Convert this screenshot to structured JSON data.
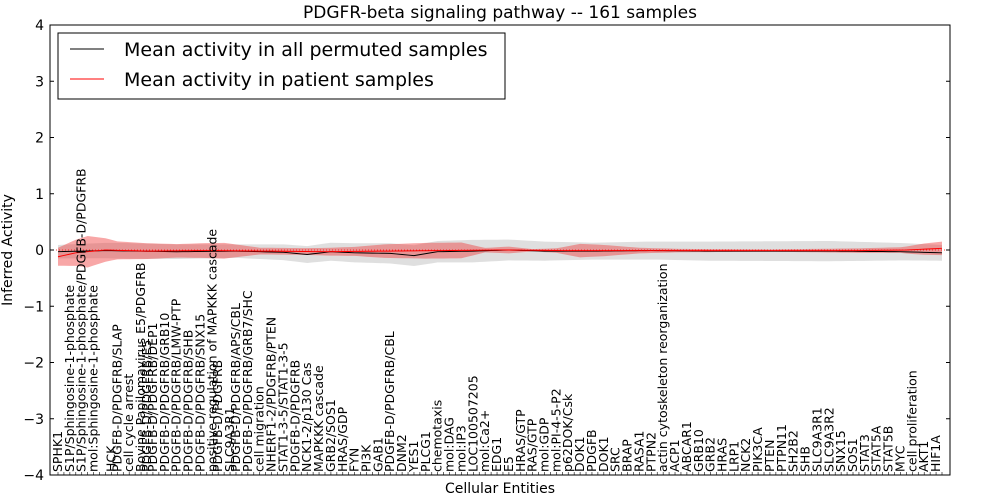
{
  "chart_data": {
    "type": "line",
    "title": "PDGFR-beta signaling pathway -- 161 samples",
    "xlabel": "Cellular Entities",
    "ylabel": "Inferred Activity",
    "ylim": [
      -4,
      4
    ],
    "yticks": [
      -4,
      -3,
      -2,
      -1,
      0,
      1,
      2,
      3,
      4
    ],
    "legend": {
      "placement": "top-left",
      "entries": [
        {
          "label": "Mean activity in all permuted samples",
          "color": "#000000"
        },
        {
          "label": "Mean activity in patient samples",
          "color": "#ff0000"
        }
      ]
    },
    "x_count": 150,
    "x_tick_labels": [
      {
        "i": 0,
        "label": "SPHK1"
      },
      {
        "i": 2,
        "label": "S1P/Sphingosine-1-phosphate"
      },
      {
        "i": 4,
        "label": "S1P/Sphingosine-1-phosphate/PDGFB-D/PDGFRB"
      },
      {
        "i": 6,
        "label": "mol:Sphingosine-1-phosphate"
      },
      {
        "i": 9,
        "label": "HCK"
      },
      {
        "i": 10,
        "label": "PDGFB-D/PDGFRB/SLAP"
      },
      {
        "i": 12,
        "label": "cell cycle arrest"
      },
      {
        "i": 14,
        "label": "Bovine Papilomavirus E5/PDGFRB"
      },
      {
        "i": 15,
        "label": "PDGFB-D/PDGFRB/E5"
      },
      {
        "i": 16,
        "label": "PDGFB-D/PDGFRB/DEP1"
      },
      {
        "i": 18,
        "label": "PDGFB-D/PDGFRB/GRB10"
      },
      {
        "i": 20,
        "label": "PDGFB-D/PDGFRB/LMW-PTP"
      },
      {
        "i": 22,
        "label": "PDGFB-D/PDGFRB/SHB"
      },
      {
        "i": 24,
        "label": "PDGFB-D/PDGFRB/SNX15"
      },
      {
        "i": 26,
        "label": "positive regulation of MAPKKK cascade"
      },
      {
        "i": 27,
        "label": "PDGFB-D/PDGFRB"
      },
      {
        "i": 29,
        "label": "SLC9A3R1"
      },
      {
        "i": 30,
        "label": "PDGFB-D/PDGFRB/APS/CBL"
      },
      {
        "i": 32,
        "label": "PDGFB-D/PDGFRB/GRB7/SHC"
      },
      {
        "i": 34,
        "label": "cell migration"
      },
      {
        "i": 36,
        "label": "NHERF1-2/PDGFRB/PTEN"
      },
      {
        "i": 38,
        "label": "STAT1-3-5/STAT1-3-5"
      },
      {
        "i": 40,
        "label": "PDGFB-D/PDGFRB"
      },
      {
        "i": 42,
        "label": "NCK1-2/p130 Cas"
      },
      {
        "i": 44,
        "label": "MAPKKK cascade"
      },
      {
        "i": 46,
        "label": "GRB2/SOS1"
      },
      {
        "i": 48,
        "label": "HRAS/GDP"
      },
      {
        "i": 50,
        "label": "FYN"
      },
      {
        "i": 52,
        "label": "PI3K"
      },
      {
        "i": 54,
        "label": "GAB1"
      },
      {
        "i": 56,
        "label": "PDGFB-D/PDGFRB/CBL"
      },
      {
        "i": 58,
        "label": "DNM2"
      },
      {
        "i": 60,
        "label": "YES1"
      },
      {
        "i": 62,
        "label": "PLCG1"
      },
      {
        "i": 64,
        "label": "chemotaxis"
      },
      {
        "i": 66,
        "label": "mol:DAG"
      },
      {
        "i": 68,
        "label": "mol:IP3"
      },
      {
        "i": 70,
        "label": "LOC100507205"
      },
      {
        "i": 72,
        "label": "mol:Ca2+"
      },
      {
        "i": 74,
        "label": "EDG1"
      },
      {
        "i": 76,
        "label": "E5"
      },
      {
        "i": 78,
        "label": "HRAS/GTP"
      },
      {
        "i": 80,
        "label": "RAS/GTP"
      },
      {
        "i": 82,
        "label": "mol:GDP"
      },
      {
        "i": 84,
        "label": "mol:PI-4-5-P2"
      },
      {
        "i": 86,
        "label": "p62DOK/Csk"
      },
      {
        "i": 88,
        "label": "DOK1"
      },
      {
        "i": 90,
        "label": "PDGFB"
      },
      {
        "i": 92,
        "label": "DOK1"
      },
      {
        "i": 94,
        "label": "SRC"
      },
      {
        "i": 96,
        "label": "BRAP"
      },
      {
        "i": 98,
        "label": "RASA1"
      },
      {
        "i": 100,
        "label": "PTPN2"
      },
      {
        "i": 102,
        "label": "actin cytoskeleton reorganization"
      },
      {
        "i": 104,
        "label": "ACP1"
      },
      {
        "i": 106,
        "label": "ABCAR1"
      },
      {
        "i": 108,
        "label": "GRB10"
      },
      {
        "i": 110,
        "label": "GRB2"
      },
      {
        "i": 112,
        "label": "HRAS"
      },
      {
        "i": 114,
        "label": "LRP1"
      },
      {
        "i": 116,
        "label": "NCK2"
      },
      {
        "i": 118,
        "label": "PIK3CA"
      },
      {
        "i": 120,
        "label": "PTEN"
      },
      {
        "i": 122,
        "label": "PTPN11"
      },
      {
        "i": 124,
        "label": "SH2B2"
      },
      {
        "i": 126,
        "label": "SHB"
      },
      {
        "i": 128,
        "label": "SLC9A3R1"
      },
      {
        "i": 130,
        "label": "SLC9A3R2"
      },
      {
        "i": 132,
        "label": "SNX15"
      },
      {
        "i": 134,
        "label": "SOS1"
      },
      {
        "i": 136,
        "label": "STAT3"
      },
      {
        "i": 138,
        "label": "STAT5A"
      },
      {
        "i": 140,
        "label": "STAT5B"
      },
      {
        "i": 142,
        "label": "MYC"
      },
      {
        "i": 144,
        "label": "cell proliferation"
      },
      {
        "i": 146,
        "label": "AKT1"
      },
      {
        "i": 148,
        "label": "HIF1A"
      }
    ],
    "series": [
      {
        "name": "Mean activity in all permuted samples",
        "color": "#000000",
        "anchors": [
          [
            0,
            -0.03
          ],
          [
            8,
            -0.01
          ],
          [
            20,
            -0.03
          ],
          [
            30,
            -0.02
          ],
          [
            38,
            -0.04
          ],
          [
            42,
            -0.08
          ],
          [
            46,
            -0.03
          ],
          [
            50,
            -0.05
          ],
          [
            56,
            -0.06
          ],
          [
            60,
            -0.1
          ],
          [
            64,
            -0.03
          ],
          [
            70,
            -0.02
          ],
          [
            76,
            0.0
          ],
          [
            82,
            -0.02
          ],
          [
            90,
            -0.02
          ],
          [
            100,
            -0.01
          ],
          [
            110,
            -0.02
          ],
          [
            130,
            -0.02
          ],
          [
            142,
            -0.03
          ],
          [
            149,
            -0.05
          ]
        ],
        "band_anchors": [
          [
            0,
            0.12
          ],
          [
            10,
            0.14
          ],
          [
            30,
            0.12
          ],
          [
            50,
            0.17
          ],
          [
            70,
            0.2
          ],
          [
            90,
            0.15
          ],
          [
            110,
            0.17
          ],
          [
            130,
            0.18
          ],
          [
            149,
            0.14
          ]
        ]
      },
      {
        "name": "Mean activity in patient samples",
        "color": "#ff0000",
        "anchors": [
          [
            0,
            -0.12
          ],
          [
            3,
            -0.05
          ],
          [
            8,
            0.0
          ],
          [
            15,
            -0.02
          ],
          [
            25,
            -0.01
          ],
          [
            35,
            -0.02
          ],
          [
            45,
            -0.03
          ],
          [
            55,
            -0.02
          ],
          [
            65,
            -0.01
          ],
          [
            75,
            0.0
          ],
          [
            85,
            -0.01
          ],
          [
            95,
            -0.01
          ],
          [
            105,
            -0.01
          ],
          [
            115,
            -0.01
          ],
          [
            125,
            -0.01
          ],
          [
            135,
            -0.01
          ],
          [
            143,
            0.0
          ],
          [
            149,
            0.03
          ]
        ],
        "band_anchors": [
          [
            0,
            0.16
          ],
          [
            5,
            0.28
          ],
          [
            10,
            0.16
          ],
          [
            20,
            0.12
          ],
          [
            28,
            0.14
          ],
          [
            34,
            0.06
          ],
          [
            42,
            0.06
          ],
          [
            50,
            0.08
          ],
          [
            55,
            0.12
          ],
          [
            62,
            0.14
          ],
          [
            68,
            0.14
          ],
          [
            72,
            0.04
          ],
          [
            76,
            0.06
          ],
          [
            80,
            0.02
          ],
          [
            84,
            0.04
          ],
          [
            88,
            0.12
          ],
          [
            92,
            0.1
          ],
          [
            98,
            0.05
          ],
          [
            105,
            0.03
          ],
          [
            120,
            0.02
          ],
          [
            135,
            0.04
          ],
          [
            142,
            0.05
          ],
          [
            146,
            0.1
          ],
          [
            149,
            0.12
          ]
        ]
      }
    ]
  }
}
